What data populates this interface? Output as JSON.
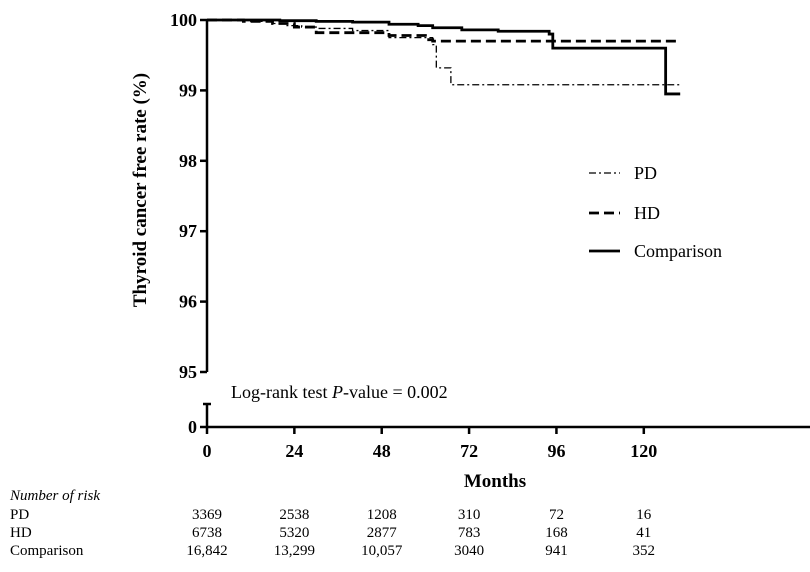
{
  "chart_data": {
    "type": "line",
    "subtype": "kaplan-meier",
    "xlabel": "Months",
    "ylabel": "Thyroid cancer free rate (%)",
    "x_ticks": [
      0,
      24,
      48,
      72,
      96,
      120
    ],
    "y_ticks": [
      0,
      95,
      96,
      97,
      98,
      99,
      100
    ],
    "xlim": [
      0,
      130
    ],
    "ylim": [
      95,
      100
    ],
    "y_axis_break": "between 0 and 95",
    "grid": false,
    "legend_position": "right-middle",
    "annotation": "Log-rank test P-value = 0.002",
    "series": [
      {
        "name": "PD",
        "line_style": "dash-dot",
        "x": [
          0,
          12,
          18,
          22,
          26,
          30,
          40,
          50,
          62,
          63,
          66,
          67,
          80,
          100,
          130
        ],
        "y": [
          100,
          99.98,
          99.95,
          99.92,
          99.9,
          99.88,
          99.85,
          99.75,
          99.65,
          99.32,
          99.32,
          99.08,
          99.08,
          99.08,
          99.08
        ]
      },
      {
        "name": "HD",
        "line_style": "dashed",
        "x": [
          0,
          10,
          18,
          24,
          30,
          42,
          50,
          60,
          62,
          70,
          90,
          100,
          130
        ],
        "y": [
          100,
          99.98,
          99.95,
          99.9,
          99.82,
          99.82,
          99.78,
          99.72,
          99.7,
          99.7,
          99.7,
          99.7,
          99.7
        ]
      },
      {
        "name": "Comparison",
        "line_style": "solid",
        "x": [
          0,
          20,
          30,
          40,
          50,
          58,
          62,
          70,
          80,
          94,
          95,
          110,
          120,
          125,
          126,
          130
        ],
        "y": [
          100,
          99.99,
          99.98,
          99.97,
          99.94,
          99.92,
          99.89,
          99.86,
          99.84,
          99.8,
          99.6,
          99.6,
          99.6,
          99.6,
          98.95,
          98.95
        ]
      }
    ]
  },
  "risk_table": {
    "title": "Number of risk",
    "columns": [
      0,
      24,
      48,
      72,
      96,
      120
    ],
    "rows": [
      {
        "label": "PD",
        "values": [
          "3369",
          "2538",
          "1208",
          "310",
          "72",
          "16"
        ]
      },
      {
        "label": "HD",
        "values": [
          "6738",
          "5320",
          "2877",
          "783",
          "168",
          "41"
        ]
      },
      {
        "label": "Comparison",
        "values": [
          "16,842",
          "13,299",
          "10,057",
          "3040",
          "941",
          "352"
        ]
      }
    ]
  }
}
